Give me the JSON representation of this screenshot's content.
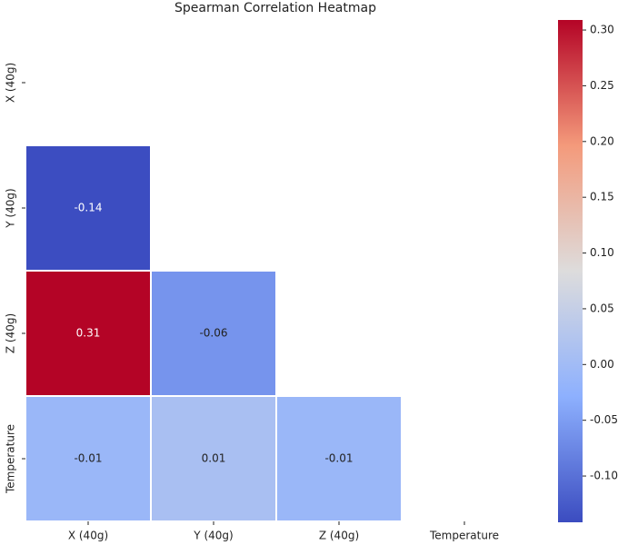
{
  "chart_data": {
    "type": "heatmap",
    "title": "Spearman Correlation Heatmap",
    "categories": [
      "X (40g)",
      "Y (40g)",
      "Z (40g)",
      "Temperature"
    ],
    "values": [
      [
        null,
        null,
        null,
        null
      ],
      [
        -0.14,
        null,
        null,
        null
      ],
      [
        0.31,
        -0.06,
        null,
        null
      ],
      [
        -0.01,
        0.01,
        -0.01,
        null
      ]
    ],
    "colormap": [
      "#3b4cc0",
      "#8db0fe",
      "#dddcdc",
      "#f49a7b",
      "#b40426"
    ],
    "clim": [
      -0.1415,
      0.309
    ],
    "cticks": [
      {
        "value": -0.1,
        "label": "-0.10"
      },
      {
        "value": -0.05,
        "label": "-0.05"
      },
      {
        "value": 0,
        "label": "0.00"
      },
      {
        "value": 0.05,
        "label": "0.05"
      },
      {
        "value": 0.1,
        "label": "0.10"
      },
      {
        "value": 0.15,
        "label": "0.15"
      },
      {
        "value": 0.2,
        "label": "0.20"
      },
      {
        "value": 0.25,
        "label": "0.25"
      },
      {
        "value": 0.3,
        "label": "0.30"
      }
    ]
  }
}
